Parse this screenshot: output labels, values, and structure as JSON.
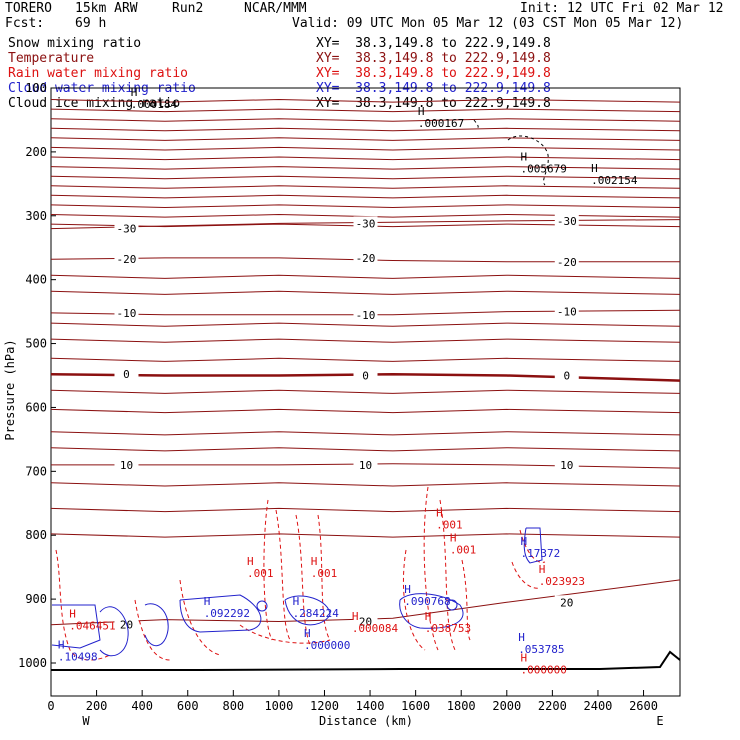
{
  "header": {
    "model": "TORERO",
    "config": "15km ARW",
    "run": "Run2",
    "org": "NCAR/MMM",
    "init": "Init: 12 UTC Fri 02 Mar 12",
    "fcst_label": "Fcst:",
    "fcst_hours": "69 h",
    "valid": "Valid: 09 UTC Mon 05 Mar 12 (03 CST Mon 05 Mar 12)"
  },
  "fields": [
    {
      "name": "Snow mixing ratio",
      "color": "#000000",
      "xy": "XY=  38.3,149.8 to 222.9,149.8"
    },
    {
      "name": "Temperature",
      "color": "#8b1010",
      "xy": "XY=  38.3,149.8 to 222.9,149.8"
    },
    {
      "name": "Rain water mixing ratio",
      "color": "#dd1111",
      "xy": "XY=  38.3,149.8 to 222.9,149.8"
    },
    {
      "name": "Cloud water mixing ratio",
      "color": "#2222cc",
      "xy": "XY=  38.3,149.8 to 222.9,149.8"
    },
    {
      "name": "Cloud ice mixing ratio",
      "color": "#000000",
      "xy": "XY=  38.3,149.8 to 222.9,149.8"
    }
  ],
  "chart_data": {
    "type": "line",
    "xlabel": "Distance (km)",
    "ylabel": "Pressure (hPa)",
    "xlim": [
      0,
      2760
    ],
    "ylim": [
      1050,
      100
    ],
    "x_ticks": [
      0,
      200,
      400,
      600,
      800,
      1000,
      1200,
      1400,
      1600,
      1800,
      2000,
      2200,
      2400,
      2600
    ],
    "y_ticks": [
      100,
      200,
      300,
      400,
      500,
      600,
      700,
      800,
      900,
      1000
    ],
    "direction_left": "W",
    "direction_right": "E",
    "temperature_contours": [
      {
        "label": "-30",
        "p": [
          320,
          316,
          312,
          310,
          308,
          306
        ]
      },
      {
        "label": "-20",
        "p": [
          368,
          366,
          366,
          370,
          372,
          372
        ]
      },
      {
        "label": "-10",
        "p": [
          452,
          455,
          455,
          455,
          450,
          448
        ]
      },
      {
        "label": "0",
        "p": [
          548,
          550,
          550,
          548,
          550,
          558
        ]
      },
      {
        "label": "10",
        "p": [
          690,
          690,
          690,
          688,
          690,
          695
        ]
      },
      {
        "label": "20",
        "p": [
          940,
          932,
          935,
          930,
          905,
          870
        ]
      }
    ],
    "contour_x": [
      0,
      500,
      1000,
      1500,
      2000,
      2760
    ],
    "labels": [
      {
        "text": ".000184",
        "x": 350,
        "p": 125,
        "series": "snow"
      },
      {
        "text": ".000167",
        "x": 1610,
        "p": 155,
        "series": "snow"
      },
      {
        "text": ".005679",
        "x": 2060,
        "p": 226,
        "series": "snow"
      },
      {
        "text": ".002154",
        "x": 2370,
        "p": 244,
        "series": "snow"
      },
      {
        "text": ".000000",
        "x": 1110,
        "p": 972,
        "series": "cloud"
      },
      {
        "text": ".001",
        "x": 1690,
        "p": 783,
        "series": "rain"
      },
      {
        "text": ".001",
        "x": 860,
        "p": 859,
        "series": "rain"
      },
      {
        "text": ".001",
        "x": 1140,
        "p": 859,
        "series": "rain"
      },
      {
        "text": ".001",
        "x": 1750,
        "p": 822,
        "series": "rain"
      },
      {
        "text": ".046451",
        "x": 80,
        "p": 941,
        "series": "rain"
      },
      {
        "text": ".000084",
        "x": 1320,
        "p": 945,
        "series": "rain"
      },
      {
        "text": ".038753",
        "x": 1640,
        "p": 945,
        "series": "rain"
      },
      {
        "text": ".023923",
        "x": 2140,
        "p": 872,
        "series": "rain"
      },
      {
        "text": ".000000",
        "x": 2060,
        "p": 1010,
        "series": "rain"
      },
      {
        "text": ".10498",
        "x": 30,
        "p": 990,
        "series": "cloud"
      },
      {
        "text": ".092292",
        "x": 670,
        "p": 922,
        "series": "cloud"
      },
      {
        "text": ".284224",
        "x": 1060,
        "p": 922,
        "series": "cloud"
      },
      {
        "text": ".090768",
        "x": 1550,
        "p": 903,
        "series": "cloud"
      },
      {
        "text": ".17372",
        "x": 2060,
        "p": 828,
        "series": "cloud"
      },
      {
        "text": ".053785",
        "x": 2050,
        "p": 978,
        "series": "cloud"
      }
    ]
  },
  "colors": {
    "temperature": "#8b1010",
    "rain": "#dd1111",
    "cloud": "#2222cc",
    "snow": "#000000",
    "terrain": "#000000"
  }
}
